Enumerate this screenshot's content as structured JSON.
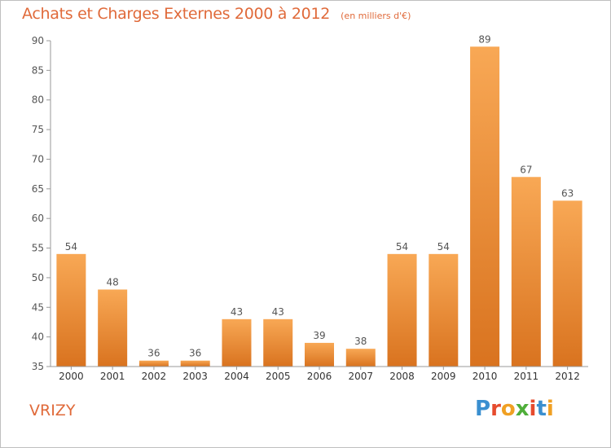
{
  "header": {
    "title": "Achats et Charges Externes 2000 à 2012",
    "subtitle": "(en milliers d'€)"
  },
  "footer": {
    "town": "VRIZY",
    "logo_letters": [
      "P",
      "r",
      "o",
      "x",
      "i",
      "t",
      "i"
    ]
  },
  "colors": {
    "title": "#e06a3a",
    "bar_light": "#f8a855",
    "bar_dark": "#d9731f",
    "axis": "#999999",
    "logo": [
      "#3a8fd0",
      "#e64b2e",
      "#f0a023",
      "#4fae3a",
      "#e64b2e",
      "#3a8fd0",
      "#f0a023"
    ]
  },
  "chart_data": {
    "type": "bar",
    "title": "Achats et Charges Externes 2000 à 2012",
    "subtitle": "(en milliers d'€)",
    "xlabel": "",
    "ylabel": "",
    "categories": [
      "2000",
      "2001",
      "2002",
      "2003",
      "2004",
      "2005",
      "2006",
      "2007",
      "2008",
      "2009",
      "2010",
      "2011",
      "2012"
    ],
    "values": [
      54,
      48,
      36,
      36,
      43,
      43,
      39,
      38,
      54,
      54,
      89,
      67,
      63
    ],
    "ylim": [
      35,
      90
    ],
    "yticks": [
      35,
      40,
      45,
      50,
      55,
      60,
      65,
      70,
      75,
      80,
      85,
      90
    ],
    "grid": false,
    "legend": "none"
  }
}
